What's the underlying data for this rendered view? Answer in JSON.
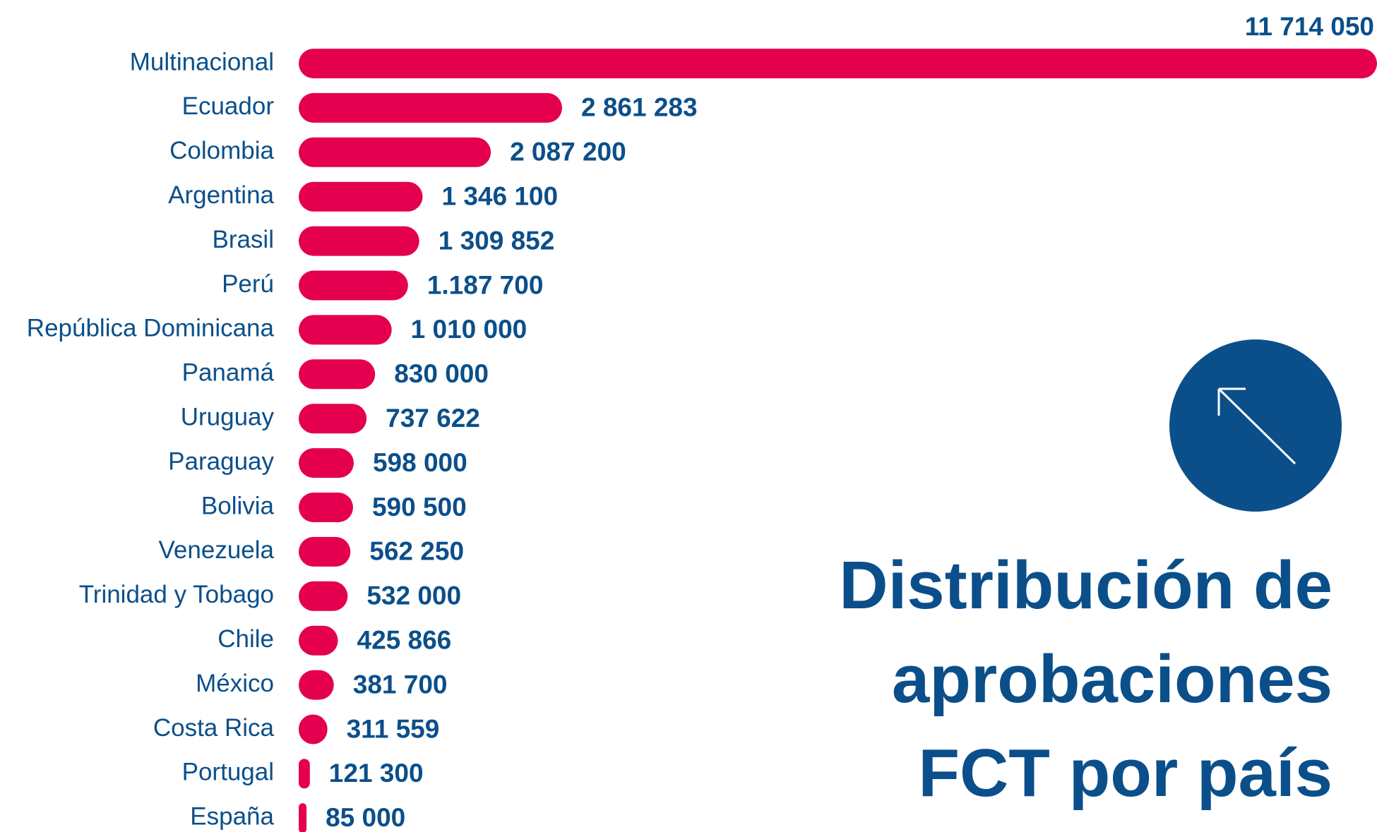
{
  "chart_data": {
    "type": "barh",
    "title": "Distribución de aprobaciones FCT por país",
    "categories": [
      "Multinacional",
      "Ecuador",
      "Colombia",
      "Argentina",
      "Brasil",
      "Perú",
      "República Dominicana",
      "Panamá",
      "Uruguay",
      "Paraguay",
      "Bolivia",
      "Venezuela",
      "Trinidad y Tobago",
      "Chile",
      "México",
      "Costa Rica",
      "Portugal",
      "España"
    ],
    "values": [
      11714050,
      2861283,
      2087200,
      1346100,
      1309852,
      1187700,
      1010000,
      830000,
      737622,
      598000,
      590500,
      562250,
      532000,
      425866,
      381700,
      311559,
      121300,
      85000
    ],
    "value_labels": [
      "11 714 050",
      "2 861 283",
      "2 087 200",
      "1 346 100",
      "1 309 852",
      "1.187 700",
      "1 010 000",
      "830 000",
      "737 622",
      "598 000",
      "590 500",
      "562 250",
      "532 000",
      "425 866",
      "381 700",
      "311 559",
      "121 300",
      "85 000"
    ],
    "color": "#e4004f",
    "xlim": [
      0,
      11714050
    ]
  }
}
